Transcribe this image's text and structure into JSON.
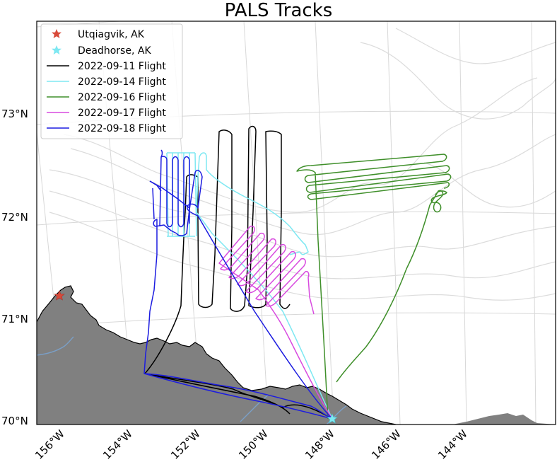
{
  "title": "PALS Tracks",
  "colors": {
    "land": "#808080",
    "river": "#7a9fc7",
    "coastline": "#000000",
    "grid": "#d8d8d8",
    "bathymetry": "#dcdcdc",
    "utqiagvik_marker": "#d84a3a",
    "deadhorse_marker": "#7ee8f2"
  },
  "lat_labels": [
    "73°N",
    "72°N",
    "71°N",
    "70°N"
  ],
  "lon_labels": [
    "156°W",
    "154°W",
    "152°W",
    "150°W",
    "148°W",
    "146°W",
    "144°W"
  ],
  "legend": {
    "position": "top-left",
    "entries": [
      {
        "label": "Utqiagvik, AK",
        "kind": "star",
        "color": "#d84a3a"
      },
      {
        "label": "Deadhorse, AK",
        "kind": "star",
        "color": "#7ee8f2"
      },
      {
        "label": "2022-09-11 Flight",
        "kind": "line",
        "color": "#000000"
      },
      {
        "label": "2022-09-14 Flight",
        "kind": "line",
        "color": "#7ee8f2"
      },
      {
        "label": "2022-09-16 Flight",
        "kind": "line",
        "color": "#3f8f2a"
      },
      {
        "label": "2022-09-17 Flight",
        "kind": "line",
        "color": "#d84adf"
      },
      {
        "label": "2022-09-18 Flight",
        "kind": "line",
        "color": "#1c1ce0"
      }
    ]
  },
  "locations": [
    {
      "name": "Utqiagvik, AK",
      "lat": 71.29,
      "lon": -156.79
    },
    {
      "name": "Deadhorse, AK",
      "lat": 70.2,
      "lon": -148.46
    }
  ]
}
